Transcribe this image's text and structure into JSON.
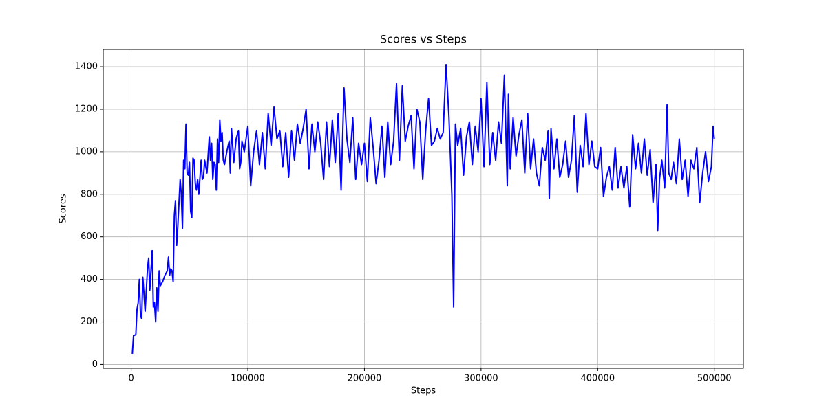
{
  "chart_data": {
    "type": "line",
    "title": "Scores vs Steps",
    "x_label": "Steps",
    "y_label": "Scores",
    "xlim": [
      -23950,
      524950
    ],
    "ylim": [
      -18,
      1481
    ],
    "xticks": [
      0,
      100000,
      200000,
      300000,
      400000,
      500000
    ],
    "yticks": [
      0,
      200,
      400,
      600,
      800,
      1000,
      1200,
      1400
    ],
    "grid": true,
    "series": [
      {
        "name": "Scores",
        "color": "#0000ff",
        "x": [
          1000,
          2000,
          4000,
          5000,
          6000,
          7000,
          8000,
          9000,
          10000,
          12000,
          14000,
          15000,
          16000,
          18000,
          19000,
          20000,
          21000,
          22000,
          23000,
          24000,
          25000,
          27000,
          29000,
          31000,
          32000,
          33000,
          34000,
          35000,
          36000,
          37000,
          38000,
          39000,
          40000,
          42000,
          43000,
          44000,
          45000,
          46000,
          47000,
          48000,
          49000,
          50000,
          51000,
          52000,
          53000,
          54000,
          55000,
          56000,
          57000,
          58000,
          60000,
          61000,
          62000,
          63000,
          65000,
          67000,
          68000,
          69000,
          70000,
          71000,
          72000,
          73000,
          74000,
          75000,
          76000,
          77000,
          78000,
          79000,
          80000,
          82000,
          84000,
          85000,
          86000,
          88000,
          90000,
          92000,
          93000,
          94000,
          95000,
          97000,
          100000,
          102500,
          105000,
          107500,
          110000,
          112500,
          115000,
          117500,
          120000,
          122500,
          125000,
          127500,
          130000,
          132500,
          135000,
          137500,
          140000,
          142500,
          145000,
          147500,
          150000,
          152500,
          155000,
          157500,
          160000,
          162500,
          165000,
          167500,
          170000,
          172500,
          175000,
          177500,
          180000,
          182500,
          185000,
          187500,
          190000,
          192500,
          195000,
          197500,
          200000,
          202500,
          205000,
          207500,
          210000,
          212500,
          215000,
          217500,
          220000,
          222500,
          225000,
          227500,
          230000,
          232500,
          235000,
          237500,
          240000,
          242500,
          245000,
          247500,
          250000,
          252500,
          255000,
          257500,
          260000,
          262500,
          265000,
          267500,
          270000,
          272500,
          275000,
          276500,
          278000,
          280000,
          282500,
          285000,
          287500,
          290000,
          292500,
          295000,
          297500,
          300000,
          302500,
          305000,
          307500,
          310000,
          312500,
          315000,
          317500,
          320000,
          322500,
          323500,
          325000,
          327500,
          330000,
          332500,
          335000,
          337500,
          340000,
          342500,
          345000,
          347500,
          350000,
          352500,
          355000,
          357500,
          358500,
          360000,
          362500,
          365000,
          367500,
          370000,
          372500,
          375000,
          377500,
          380000,
          382500,
          385000,
          387500,
          390000,
          392500,
          395000,
          397500,
          400000,
          402500,
          405000,
          407500,
          410000,
          412500,
          415000,
          417500,
          420000,
          422500,
          425000,
          427500,
          430000,
          432500,
          435000,
          437500,
          440000,
          442500,
          445000,
          447500,
          450000,
          451500,
          453000,
          455000,
          457500,
          459500,
          461000,
          463000,
          465000,
          467500,
          470000,
          472500,
          475000,
          477500,
          480000,
          482500,
          485000,
          487500,
          490000,
          492500,
          495000,
          497500,
          499000,
          500000
        ],
        "values": [
          50,
          135,
          140,
          260,
          290,
          400,
          230,
          215,
          410,
          250,
          450,
          500,
          350,
          535,
          270,
          290,
          200,
          360,
          250,
          440,
          370,
          390,
          420,
          440,
          505,
          420,
          450,
          440,
          390,
          700,
          770,
          560,
          650,
          870,
          800,
          640,
          960,
          920,
          1130,
          900,
          890,
          950,
          720,
          690,
          970,
          960,
          850,
          820,
          870,
          800,
          960,
          870,
          880,
          960,
          900,
          1070,
          960,
          1040,
          870,
          950,
          940,
          820,
          1060,
          950,
          1150,
          1050,
          1090,
          960,
          940,
          1000,
          1050,
          900,
          1110,
          950,
          1060,
          1100,
          920,
          950,
          1050,
          1000,
          1120,
          840,
          1000,
          1100,
          940,
          1090,
          920,
          1180,
          1030,
          1210,
          1060,
          1100,
          930,
          1090,
          880,
          1100,
          960,
          1130,
          1040,
          1110,
          1200,
          920,
          1130,
          1000,
          1140,
          1040,
          870,
          1140,
          930,
          1150,
          950,
          1180,
          820,
          1300,
          1060,
          950,
          1160,
          870,
          1040,
          940,
          1040,
          860,
          1160,
          1020,
          850,
          960,
          1120,
          880,
          1140,
          940,
          1050,
          1320,
          960,
          1310,
          1050,
          1120,
          1170,
          920,
          1200,
          1140,
          870,
          1100,
          1250,
          1030,
          1050,
          1110,
          1060,
          1090,
          1410,
          1160,
          790,
          270,
          1130,
          1030,
          1110,
          890,
          1070,
          1140,
          940,
          1120,
          1000,
          1250,
          930,
          1325,
          940,
          1090,
          960,
          1140,
          1040,
          1360,
          840,
          1270,
          920,
          1160,
          980,
          1080,
          1150,
          900,
          1180,
          920,
          1060,
          900,
          840,
          1020,
          960,
          1100,
          780,
          1110,
          920,
          1060,
          880,
          940,
          1050,
          880,
          960,
          1170,
          810,
          1030,
          930,
          1180,
          940,
          1050,
          930,
          920,
          1020,
          790,
          880,
          930,
          820,
          1020,
          830,
          930,
          830,
          930,
          740,
          1080,
          920,
          1040,
          900,
          1060,
          890,
          1010,
          760,
          940,
          630,
          870,
          960,
          830,
          1220,
          900,
          870,
          950,
          850,
          1060,
          870,
          960,
          790,
          960,
          920,
          1020,
          760,
          900,
          1000,
          860,
          930,
          1120,
          1060
        ]
      }
    ]
  }
}
